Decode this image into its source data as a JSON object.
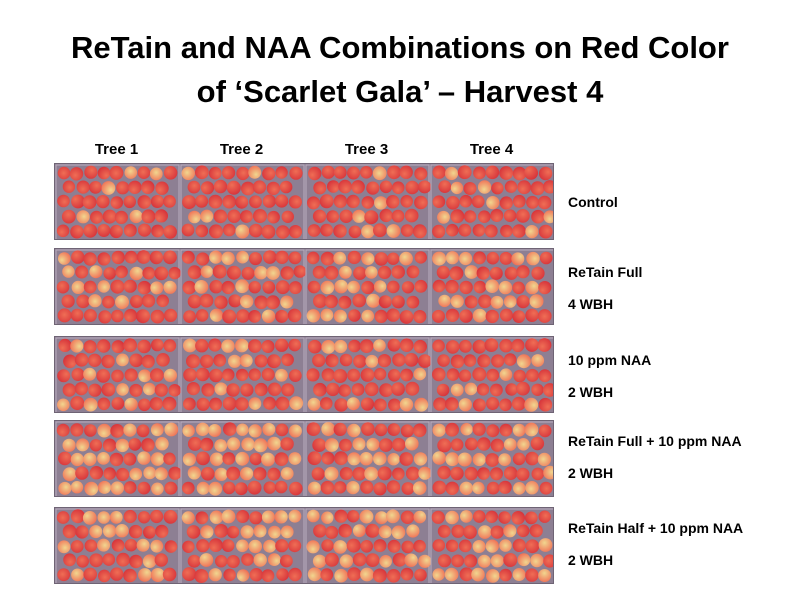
{
  "title": {
    "line1": "ReTain and NAA Combinations on Red Color",
    "line2": "of ‘Scarlet Gala’ – Harvest 4"
  },
  "trees": [
    "Tree 1",
    "Tree 2",
    "Tree 3",
    "Tree 4"
  ],
  "treatments": [
    {
      "line1": "Control",
      "line2": "",
      "redness": 0.88
    },
    {
      "line1": "ReTain Full",
      "line2": "4 WBH",
      "redness": 0.65
    },
    {
      "line1": "10 ppm NAA",
      "line2": "2 WBH",
      "redness": 0.8
    },
    {
      "line1": "ReTain Full + 10 ppm NAA",
      "line2": "2 WBH",
      "redness": 0.55
    },
    {
      "line1": "ReTain Half + 10 ppm NAA",
      "line2": "2 WBH",
      "redness": 0.6
    }
  ],
  "colors": {
    "tray": "#8d7f93",
    "apple_red": "#d6323a",
    "apple_blush": "#ef6e55",
    "apple_yellow": "#f1d68f"
  }
}
